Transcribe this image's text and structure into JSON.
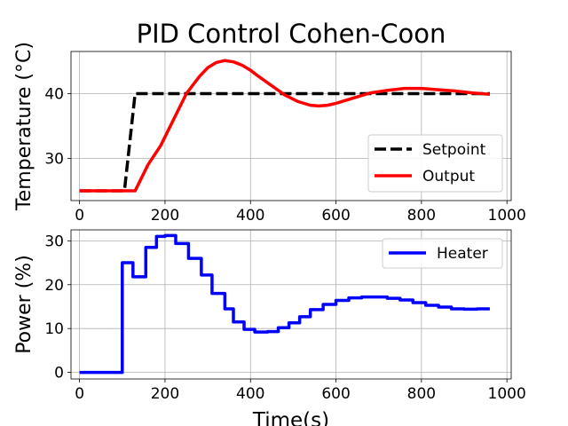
{
  "figure": {
    "title": "PID Control Cohen-Coon"
  },
  "chart_data": [
    {
      "type": "line",
      "ylabel": "Temperature (°C)",
      "xlabel": "",
      "xlim": [
        -20,
        1010
      ],
      "ylim": [
        23.5,
        46.5
      ],
      "xticks": [
        0,
        200,
        400,
        600,
        800,
        1000
      ],
      "yticks": [
        30,
        40
      ],
      "grid": true,
      "legend_position": "lower right",
      "series": [
        {
          "name": "Setpoint",
          "color": "#000000",
          "style": "dashed",
          "x": [
            0,
            105,
            130,
            960
          ],
          "y": [
            25,
            25,
            40,
            40
          ]
        },
        {
          "name": "Output",
          "color": "#ff0000",
          "style": "solid",
          "x": [
            0,
            100,
            130,
            160,
            190,
            220,
            250,
            280,
            300,
            320,
            340,
            360,
            380,
            400,
            420,
            450,
            480,
            510,
            540,
            560,
            580,
            600,
            640,
            680,
            720,
            760,
            800,
            840,
            880,
            920,
            960
          ],
          "y": [
            25,
            25,
            25,
            29,
            32,
            36,
            40,
            42.6,
            44,
            44.8,
            45.1,
            44.9,
            44.4,
            43.6,
            42.6,
            41.2,
            39.8,
            38.8,
            38.2,
            38.1,
            38.2,
            38.5,
            39.3,
            40.1,
            40.5,
            40.8,
            40.8,
            40.6,
            40.4,
            40.1,
            39.9
          ]
        }
      ]
    },
    {
      "type": "line",
      "ylabel": "Power (%)",
      "xlabel": "Time(s)",
      "xlim": [
        -20,
        1010
      ],
      "ylim": [
        -1.5,
        32.5
      ],
      "xticks": [
        0,
        200,
        400,
        600,
        800,
        1000
      ],
      "yticks": [
        0,
        10,
        20,
        30
      ],
      "grid": true,
      "legend_position": "upper right",
      "series": [
        {
          "name": "Heater",
          "color": "#0000ff",
          "style": "steps-post",
          "x": [
            0,
            100,
            125,
            155,
            180,
            200,
            225,
            255,
            285,
            310,
            340,
            360,
            385,
            410,
            440,
            465,
            490,
            515,
            540,
            570,
            600,
            630,
            660,
            690,
            720,
            750,
            780,
            810,
            840,
            870,
            900,
            930,
            960
          ],
          "y": [
            0,
            25,
            21.8,
            28.5,
            31,
            31.2,
            29.4,
            26,
            22.2,
            18,
            14.5,
            11.5,
            9.8,
            9.2,
            9.3,
            10.2,
            11.3,
            12.7,
            14.3,
            15.5,
            16.4,
            17,
            17.2,
            17.2,
            16.9,
            16.5,
            15.9,
            15.3,
            14.9,
            14.5,
            14.4,
            14.5,
            14.5
          ]
        }
      ]
    }
  ]
}
